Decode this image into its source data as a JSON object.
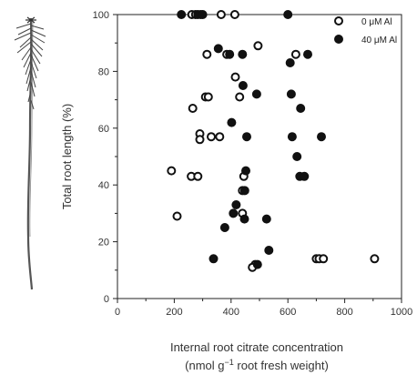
{
  "chart_data": {
    "type": "scatter",
    "xlabel": "Internal root citrate concentration",
    "xlabel_units_prefix": "(nmol g",
    "xlabel_units_sup": "−1",
    "xlabel_units_suffix": " root fresh weight)",
    "ylabel": "Total root length (%)",
    "xlim": [
      0,
      1000
    ],
    "ylim": [
      0,
      100
    ],
    "x_ticks": [
      "0",
      "200",
      "400",
      "600",
      "800",
      "1000"
    ],
    "y_ticks": [
      "0",
      "20",
      "40",
      "60",
      "80",
      "100"
    ],
    "grid": false,
    "legend_position": "top-right",
    "series": [
      {
        "name": "0 μM Al",
        "marker": "open-circle",
        "points": [
          [
            262,
            100
          ],
          [
            275,
            100
          ],
          [
            293,
            100
          ],
          [
            365,
            100
          ],
          [
            413,
            100
          ],
          [
            495,
            89
          ],
          [
            315,
            86
          ],
          [
            385,
            86
          ],
          [
            628,
            86
          ],
          [
            415,
            78
          ],
          [
            310,
            71
          ],
          [
            320,
            71
          ],
          [
            430,
            71
          ],
          [
            265,
            67
          ],
          [
            290,
            58
          ],
          [
            290,
            56
          ],
          [
            330,
            57
          ],
          [
            360,
            57
          ],
          [
            190,
            45
          ],
          [
            260,
            43
          ],
          [
            283,
            43
          ],
          [
            445,
            43
          ],
          [
            440,
            38
          ],
          [
            440,
            30
          ],
          [
            210,
            29
          ],
          [
            700,
            14
          ],
          [
            710,
            14
          ],
          [
            725,
            14
          ],
          [
            905,
            14
          ],
          [
            485,
            12
          ],
          [
            475,
            11
          ]
        ]
      },
      {
        "name": "40 μM Al",
        "marker": "filled-circle",
        "points": [
          [
            225,
            100
          ],
          [
            283,
            100
          ],
          [
            300,
            100
          ],
          [
            600,
            100
          ],
          [
            355,
            88
          ],
          [
            395,
            86
          ],
          [
            440,
            86
          ],
          [
            670,
            86
          ],
          [
            608,
            83
          ],
          [
            442,
            75
          ],
          [
            490,
            72
          ],
          [
            612,
            72
          ],
          [
            645,
            67
          ],
          [
            402,
            62
          ],
          [
            455,
            57
          ],
          [
            615,
            57
          ],
          [
            718,
            57
          ],
          [
            632,
            50
          ],
          [
            452,
            45
          ],
          [
            642,
            43
          ],
          [
            658,
            43
          ],
          [
            448,
            38
          ],
          [
            418,
            33
          ],
          [
            408,
            30
          ],
          [
            447,
            28
          ],
          [
            525,
            28
          ],
          [
            378,
            25
          ],
          [
            533,
            17
          ],
          [
            338,
            14
          ],
          [
            493,
            12
          ]
        ]
      }
    ]
  }
}
